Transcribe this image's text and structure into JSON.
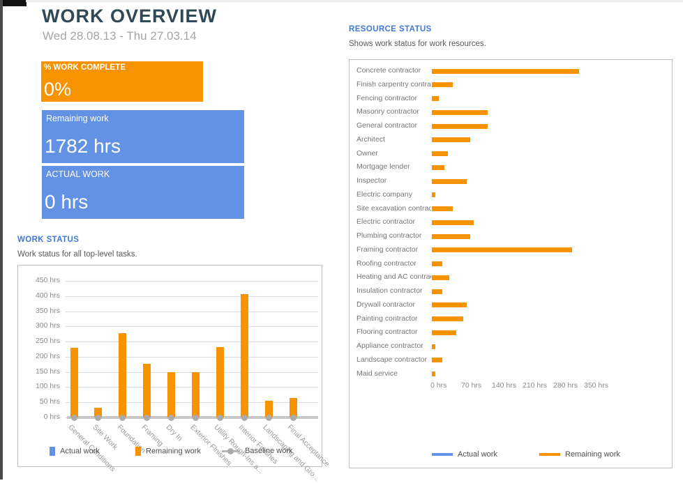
{
  "header": {
    "title": "WORK OVERVIEW",
    "date_range": "Wed 28.08.13 - Thu 27.03.14"
  },
  "colors": {
    "accent_orange": "#F79200",
    "accent_blue": "#6392E4",
    "heading_blue": "#3E79D6",
    "baseline_gray": "#B5B5B5"
  },
  "kpis": [
    {
      "label": "% WORK COMPLETE",
      "value": "0%",
      "color": "#F79200"
    },
    {
      "label": "Remaining work",
      "value": "1782 hrs",
      "color": "#6392E4"
    },
    {
      "label": "ACTUAL WORK",
      "value": "0 hrs",
      "color": "#6392E4"
    }
  ],
  "work_status": {
    "heading": "WORK STATUS",
    "subtitle": "Work status for all top-level tasks.",
    "legend": [
      {
        "label": "Actual work",
        "color": "#6392E4",
        "marker": "square"
      },
      {
        "label": "Remaining work",
        "color": "#F79200",
        "marker": "square"
      },
      {
        "label": "Baseline work",
        "color": "#B5B5B5",
        "marker": "line-dot"
      }
    ]
  },
  "resource_status": {
    "heading": "RESOURCE STATUS",
    "subtitle": "Shows work status for work resources.",
    "legend": [
      {
        "label": "Actual work",
        "color": "#6392E4"
      },
      {
        "label": "Remaining work",
        "color": "#F79200"
      }
    ]
  },
  "chart_data": [
    {
      "id": "work-status-chart",
      "type": "bar",
      "title": "WORK STATUS",
      "categories": [
        "General Conditions",
        "Site Work",
        "Foundation",
        "Framing",
        "Dry In",
        "Exterior Finishes",
        "Utility Rough-Ins a...",
        "Interior Finishes",
        "Landscaping and Gro...",
        "Final Acceptance"
      ],
      "series": [
        {
          "name": "Actual work",
          "color": "#6392E4",
          "values": [
            0,
            0,
            0,
            0,
            0,
            0,
            0,
            0,
            0,
            0
          ]
        },
        {
          "name": "Remaining work",
          "color": "#F79200",
          "values": [
            230,
            32,
            278,
            176,
            150,
            150,
            232,
            407,
            56,
            64
          ]
        },
        {
          "name": "Baseline work",
          "color": "#B5B5B5",
          "values": [
            0,
            0,
            0,
            0,
            0,
            0,
            0,
            0,
            0,
            0
          ]
        }
      ],
      "ylabel": "hrs",
      "ylim": [
        0,
        450
      ],
      "yticks": [
        "450 hrs",
        "400 hrs",
        "350 hrs",
        "300 hrs",
        "250 hrs",
        "200 hrs",
        "150 hrs",
        "100 hrs",
        "50 hrs",
        "0 hrs"
      ],
      "grid": true,
      "legend_position": "bottom"
    },
    {
      "id": "resource-status-chart",
      "type": "bar-horizontal",
      "categories": [
        "Concrete contractor",
        "Finish carpentry contractor",
        "Fencing contractor",
        "Masonry contractor",
        "General contractor",
        "Architect",
        "Owner",
        "Mortgage lender",
        "Inspector",
        "Electric company",
        "Site excavation contractor",
        "Electric contractor",
        "Plumbing contractor",
        "Framing contractor",
        "Roofing contractor",
        "Heating and AC contractor",
        "Insulation contractor",
        "Drywall contractor",
        "Painting contractor",
        "Flooring contractor",
        "Appliance contractor",
        "Landscape contractor",
        "Maid service"
      ],
      "series": [
        {
          "name": "Actual work",
          "color": "#6392E4",
          "values": [
            0,
            0,
            0,
            0,
            0,
            0,
            0,
            0,
            0,
            0,
            0,
            0,
            0,
            0,
            0,
            0,
            0,
            0,
            0,
            0,
            0,
            0,
            0
          ]
        },
        {
          "name": "Remaining work",
          "color": "#F79200",
          "values": [
            336,
            48,
            16,
            128,
            128,
            88,
            36,
            28,
            80,
            8,
            48,
            96,
            88,
            320,
            24,
            40,
            24,
            80,
            72,
            56,
            8,
            24,
            8
          ]
        }
      ],
      "xlabel": "hrs",
      "xlim": [
        0,
        385
      ],
      "xticks": [
        "0 hrs",
        "70 hrs",
        "140 hrs",
        "210 hrs",
        "280 hrs",
        "350 hrs"
      ],
      "xtick_values": [
        0,
        70,
        140,
        210,
        280,
        350
      ],
      "grid": false,
      "legend_position": "bottom"
    }
  ]
}
